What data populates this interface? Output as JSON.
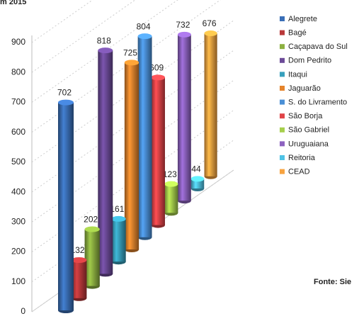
{
  "chart_data": {
    "type": "cylinder",
    "title": "m 2015",
    "source": "Fonte: Sie",
    "categories": [
      "Alegrete",
      "Bagé",
      "Caçapava do Sul",
      "Dom Pedrito",
      "Itaqui",
      "Jaguarão",
      "S. do Livramento",
      "São Borja",
      "São Gabriel",
      "Uruguaiana",
      "Reitoria",
      "CEAD"
    ],
    "values": [
      702,
      132,
      202,
      818,
      161,
      725,
      804,
      609,
      123,
      732,
      44,
      676
    ],
    "colors": [
      "#3a6fb7",
      "#b9383a",
      "#8cb040",
      "#6c4a98",
      "#37a0bd",
      "#e5842c",
      "#4a8fd6",
      "#e04448",
      "#a6cf4c",
      "#8d62c0",
      "#4fc3e6",
      "#f7a340"
    ],
    "ylim": [
      0,
      900
    ],
    "yticks": [
      0,
      100,
      200,
      300,
      400,
      500,
      600,
      700,
      800,
      900
    ],
    "grid": true
  }
}
